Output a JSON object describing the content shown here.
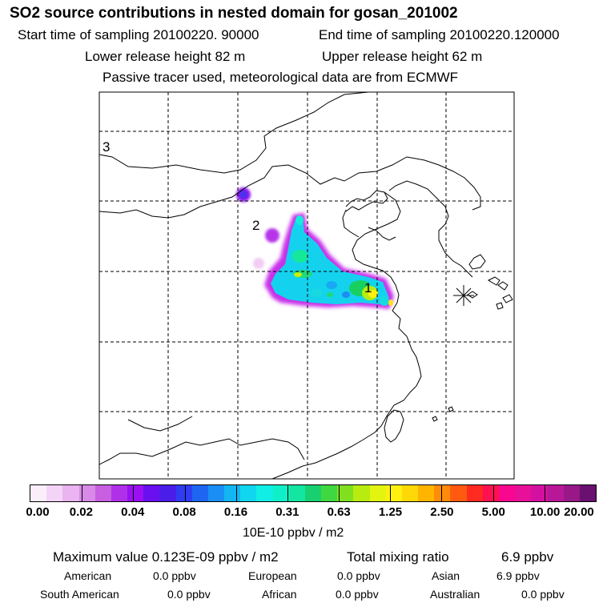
{
  "header": {
    "title": "SO2 source contributions in nested domain for gosan_201002",
    "start_time": "Start time of sampling 20100220. 90000",
    "end_time": "End time of sampling 20100220.120000",
    "lower_height": "Lower release height   82 m",
    "upper_height": "Upper release height   62 m",
    "note": "Passive tracer used, meteorological data are from ECMWF"
  },
  "map": {
    "labels": [
      "1",
      "2",
      "3"
    ],
    "receptor_marker": "asterisk-icon",
    "grid": true
  },
  "colorbar": {
    "colors": [
      "#fbeefb",
      "#f4d4f6",
      "#e9b4f0",
      "#d98ae8",
      "#c75fe0",
      "#b030ea",
      "#9a10f2",
      "#6a10f0",
      "#4a1ee8",
      "#2f3cf2",
      "#1e66f2",
      "#1a8ef4",
      "#12b6f2",
      "#10d6ee",
      "#10eee6",
      "#10f0c8",
      "#12e6a0",
      "#18d070",
      "#40d840",
      "#80e020",
      "#b8ec10",
      "#e2f410",
      "#fff010",
      "#ffd808",
      "#ffb400",
      "#ff8c08",
      "#ff5a10",
      "#ff2a20",
      "#ff1050",
      "#f80890",
      "#e81098",
      "#d410a0",
      "#b81898",
      "#981888",
      "#6a1070"
    ],
    "tick_labels": [
      "0.00",
      "0.02",
      "0.04",
      "0.08",
      "0.16",
      "0.31",
      "0.63",
      "1.25",
      "2.50",
      "5.00",
      "10.00",
      "20.00"
    ],
    "units": "10E-10 ppbv / m2"
  },
  "summary": {
    "maximum": "Maximum value  0.123E-09 ppbv / m2",
    "total_label": "Total mixing ratio",
    "total_value": "6.9 ppbv",
    "regions": [
      {
        "name": "American",
        "value": "0.0 ppbv"
      },
      {
        "name": "European",
        "value": "0.0 ppbv"
      },
      {
        "name": "Asian",
        "value": "6.9 ppbv"
      },
      {
        "name": "South American",
        "value": "0.0 ppbv"
      },
      {
        "name": "African",
        "value": "0.0 ppbv"
      },
      {
        "name": "Australian",
        "value": "0.0 ppbv"
      }
    ]
  }
}
